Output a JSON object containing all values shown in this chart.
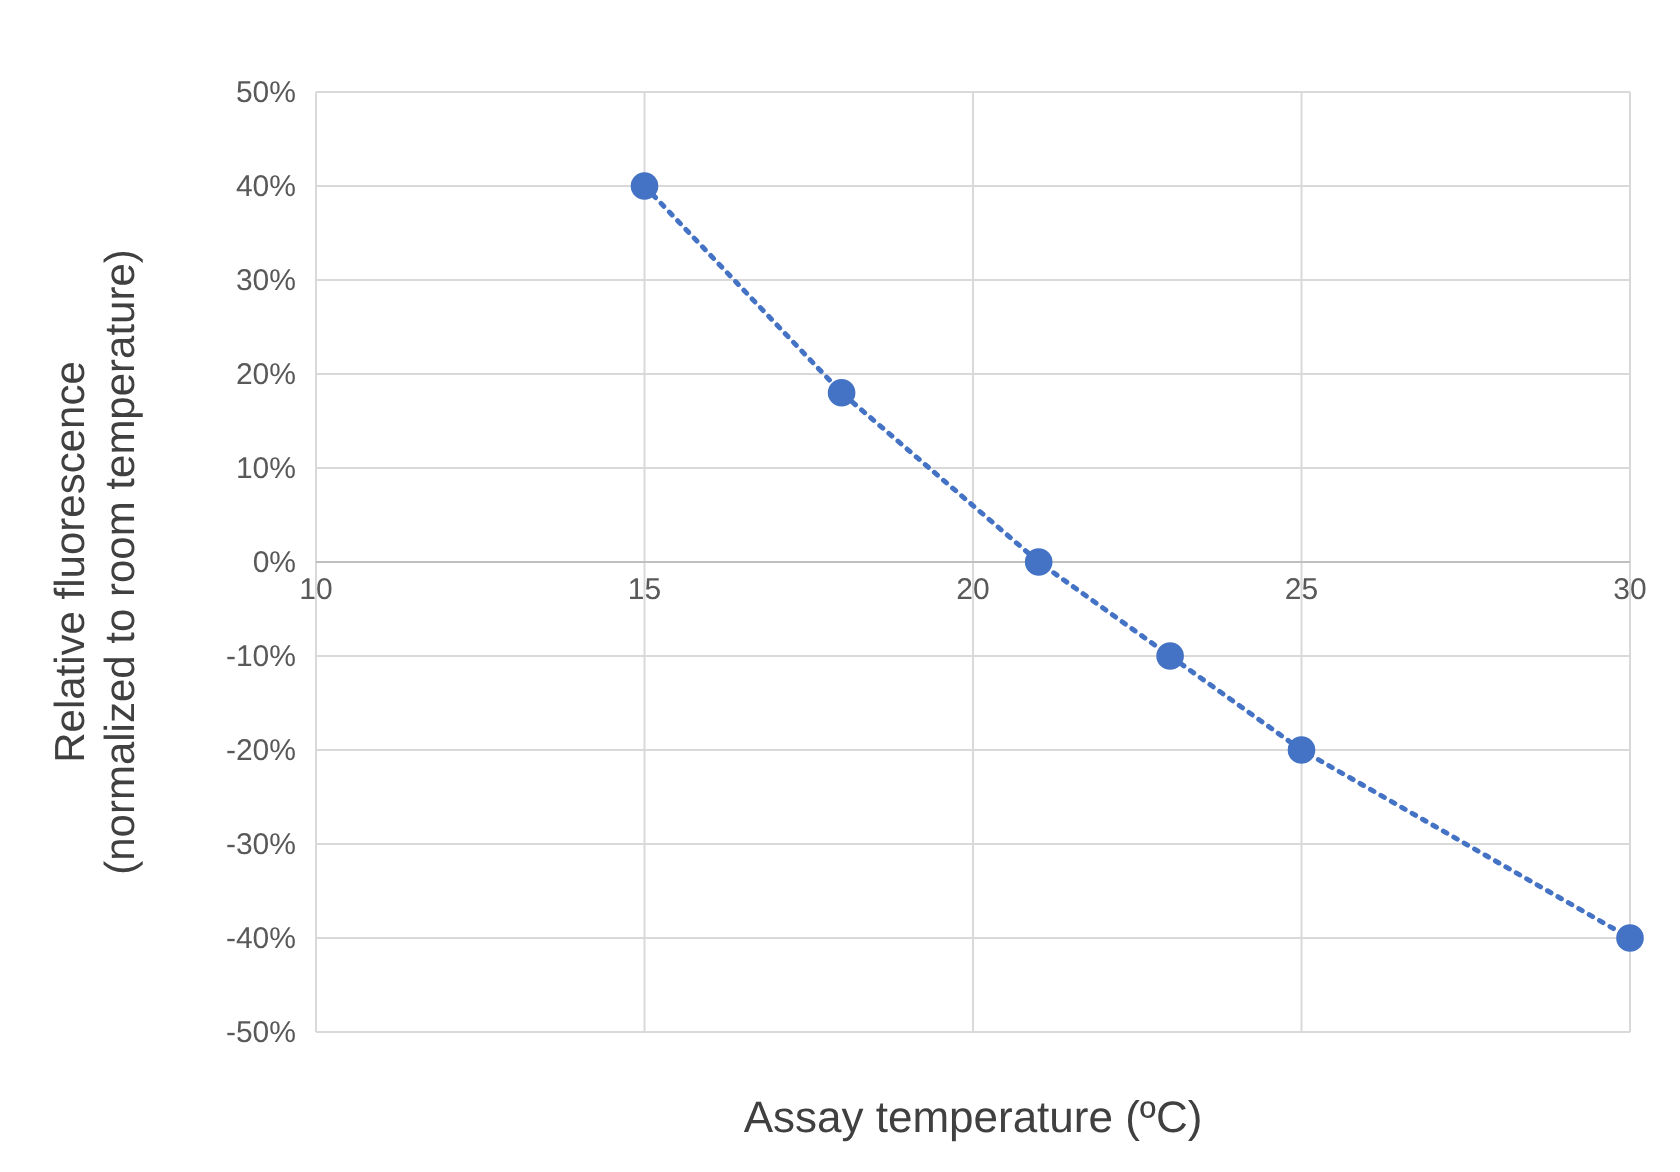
{
  "chart_data": {
    "type": "line",
    "xlabel": "Assay temperature (ºC)",
    "ylabel": "Relative fluorescence\n(normalized to room temperature)",
    "x": [
      15,
      18,
      21,
      23,
      25,
      30
    ],
    "series": [
      {
        "color": "#4472c4",
        "values": [
          40,
          18,
          0,
          -10,
          -20,
          -40
        ]
      }
    ],
    "xlim": [
      10,
      30
    ],
    "xticks": [
      10,
      15,
      20,
      25,
      30
    ],
    "ylim": [
      -50,
      50
    ],
    "yticks": [
      {
        "value": -50,
        "label": "-50%"
      },
      {
        "value": -40,
        "label": "-40%"
      },
      {
        "value": -30,
        "label": "-30%"
      },
      {
        "value": -20,
        "label": "-20%"
      },
      {
        "value": -10,
        "label": "-10%"
      },
      {
        "value": 0,
        "label": "0%"
      },
      {
        "value": 10,
        "label": "10%"
      },
      {
        "value": 20,
        "label": "20%"
      },
      {
        "value": 30,
        "label": "30%"
      },
      {
        "value": 40,
        "label": "40%"
      },
      {
        "value": 50,
        "label": "50%"
      }
    ],
    "grid": true,
    "marker": "circle",
    "line_style": "dotted"
  }
}
